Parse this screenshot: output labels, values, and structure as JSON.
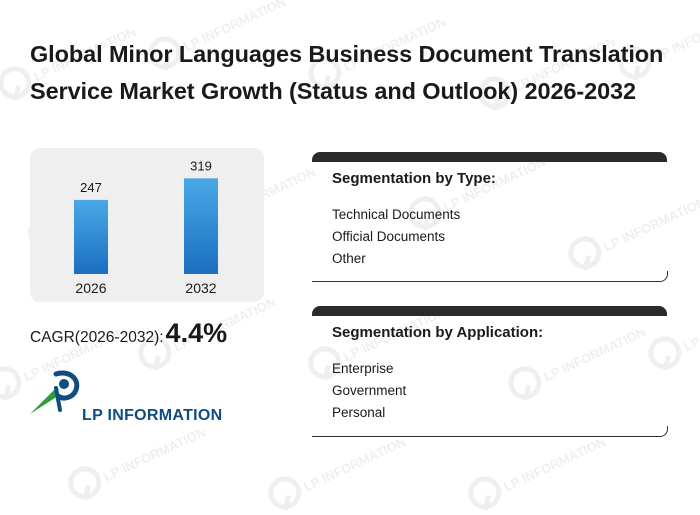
{
  "title": "Global Minor Languages Business Document Translation Service Market Growth (Status and Outlook) 2026-2032",
  "chart_data": {
    "type": "bar",
    "categories": [
      "2026",
      "2032"
    ],
    "values": [
      247,
      319
    ],
    "data_labels": [
      "247",
      "319"
    ],
    "ylim": [
      0,
      420
    ],
    "xlabel": "",
    "ylabel": "",
    "grid": false,
    "bar_color_top": "#4aa8e6",
    "bar_color_bottom": "#1a6fc0"
  },
  "cagr": {
    "label": "CAGR(2026-2032):",
    "value": "4.4%"
  },
  "segmentation_type": {
    "title": "Segmentation by Type:",
    "items": [
      "Technical Documents",
      "Official Documents",
      "Other"
    ]
  },
  "segmentation_application": {
    "title": "Segmentation by Application:",
    "items": [
      "Enterprise",
      "Government",
      "Personal"
    ]
  },
  "logo": {
    "text": "LP INFORMATION",
    "watermark_text": "LP INFORMATION",
    "primary_color": "#0f4c81",
    "accent_color": "#2e9e3a"
  }
}
